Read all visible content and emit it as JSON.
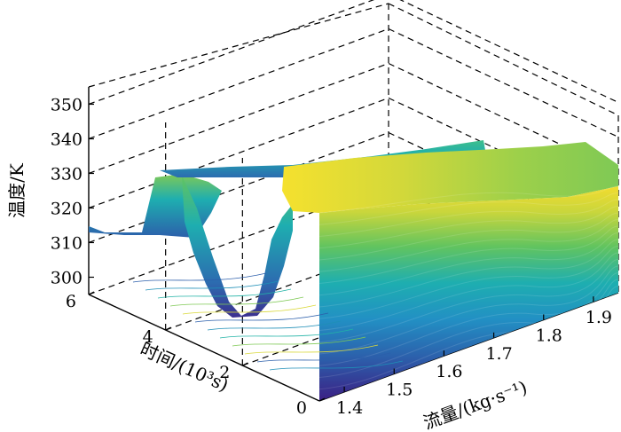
{
  "chart_data": {
    "type": "surface",
    "zlabel": "温度/K",
    "ylabel": "时间/(10³s)",
    "xlabel": "流量/(kg·s⁻¹)",
    "zlim": [
      295,
      355
    ],
    "ylim": [
      0,
      6
    ],
    "xlim": [
      1.35,
      1.95
    ],
    "z_ticks": [
      "300",
      "310",
      "320",
      "330",
      "340",
      "350"
    ],
    "y_ticks": [
      "0",
      "2",
      "4",
      "6"
    ],
    "x_ticks": [
      "1.4",
      "1.5",
      "1.6",
      "1.7",
      "1.8",
      "1.9"
    ],
    "colormap": [
      "#3b1f84",
      "#2f5fa8",
      "#1f8fb7",
      "#22b3a6",
      "#7fc955",
      "#d9d83a",
      "#f7e22d"
    ],
    "series": [
      {
        "flow": 1.4,
        "time": [
          0,
          1,
          2,
          3,
          4,
          5,
          6
        ],
        "temperature": [
          327,
          327,
          326,
          324,
          322,
          326,
          327
        ]
      },
      {
        "flow": 1.5,
        "time": [
          0,
          1,
          2,
          3,
          4,
          5,
          6
        ],
        "temperature": [
          330,
          330,
          329,
          315,
          301,
          322,
          328
        ]
      },
      {
        "flow": 1.6,
        "time": [
          0,
          1,
          2,
          3,
          4,
          5,
          6
        ],
        "temperature": [
          331,
          331,
          330,
          318,
          305,
          324,
          329
        ]
      },
      {
        "flow": 1.7,
        "time": [
          0,
          1,
          2,
          3,
          4,
          5,
          6
        ],
        "temperature": [
          332,
          332,
          331,
          326,
          320,
          328,
          330
        ]
      },
      {
        "flow": 1.8,
        "time": [
          0,
          1,
          2,
          3,
          4,
          5,
          6
        ],
        "temperature": [
          332,
          332,
          331,
          330,
          329,
          331,
          331
        ]
      },
      {
        "flow": 1.9,
        "time": [
          0,
          1,
          2,
          3,
          4,
          5,
          6
        ],
        "temperature": [
          331,
          331,
          330,
          330,
          330,
          330,
          330
        ]
      }
    ]
  }
}
